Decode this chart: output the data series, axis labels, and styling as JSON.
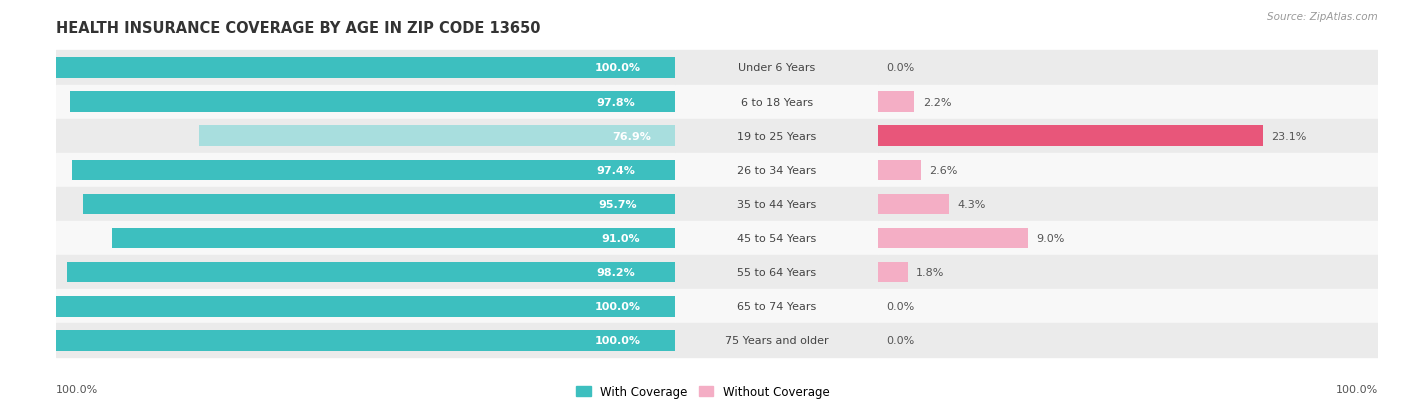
{
  "title": "HEALTH INSURANCE COVERAGE BY AGE IN ZIP CODE 13650",
  "source": "Source: ZipAtlas.com",
  "categories": [
    "Under 6 Years",
    "6 to 18 Years",
    "19 to 25 Years",
    "26 to 34 Years",
    "35 to 44 Years",
    "45 to 54 Years",
    "55 to 64 Years",
    "65 to 74 Years",
    "75 Years and older"
  ],
  "with_coverage": [
    100.0,
    97.8,
    76.9,
    97.4,
    95.7,
    91.0,
    98.2,
    100.0,
    100.0
  ],
  "without_coverage": [
    0.0,
    2.2,
    23.1,
    2.6,
    4.3,
    9.0,
    1.8,
    0.0,
    0.0
  ],
  "color_with": "#3dbfbf",
  "color_with_light": "#a8dede",
  "color_without_strong": "#e8567a",
  "color_without_light": "#f4aec5",
  "background_row_even": "#ebebeb",
  "background_row_odd": "#f8f8f8",
  "bar_height": 0.6,
  "title_fontsize": 10.5,
  "label_fontsize": 8,
  "tick_fontsize": 8,
  "legend_fontsize": 8.5,
  "left_xlim": [
    0,
    100
  ],
  "right_xlim": [
    0,
    30
  ]
}
